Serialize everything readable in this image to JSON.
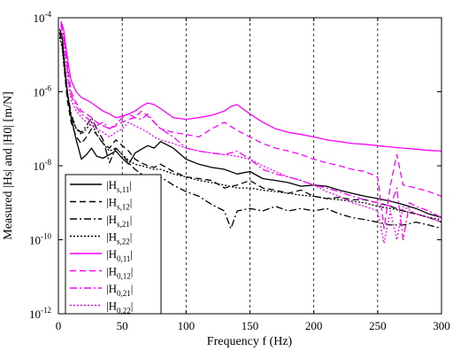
{
  "chart_data": {
    "type": "line",
    "xlabel": "Frequency f (Hz)",
    "ylabel": "Measured |Hs| and |H0| [m/N]",
    "xlim": [
      0,
      300
    ],
    "ylim": [
      1e-12,
      0.0001
    ],
    "yscale": "log",
    "grid": "vertical-dashed",
    "legend_position": "bottom-left",
    "x_ticks": [
      {
        "value": 0,
        "label": "0"
      },
      {
        "value": 50,
        "label": "50"
      },
      {
        "value": 100,
        "label": "100"
      },
      {
        "value": 150,
        "label": "150"
      },
      {
        "value": 200,
        "label": "200"
      },
      {
        "value": 250,
        "label": "250"
      },
      {
        "value": 300,
        "label": "300"
      }
    ],
    "y_ticks": [
      {
        "value": 0.0001,
        "base": "10",
        "exp": "-4"
      },
      {
        "value": 1e-06,
        "base": "10",
        "exp": "-6"
      },
      {
        "value": 1e-08,
        "base": "10",
        "exp": "-8"
      },
      {
        "value": 1e-10,
        "base": "10",
        "exp": "-10"
      },
      {
        "value": 1e-12,
        "base": "10",
        "exp": "-12"
      }
    ],
    "series": [
      {
        "name": "|Hs,11|",
        "legend_main": "|H",
        "legend_sub": "s,11",
        "legend_end": "|",
        "color": "#000000",
        "dash": "",
        "x": [
          1,
          3,
          5,
          7,
          10,
          14,
          18,
          22,
          26,
          30,
          35,
          40,
          45,
          50,
          55,
          60,
          65,
          70,
          75,
          80,
          90,
          100,
          110,
          120,
          130,
          140,
          150,
          160,
          170,
          180,
          190,
          200,
          210,
          220,
          230,
          240,
          250,
          260,
          270,
          280,
          290,
          300
        ],
        "y": [
          5e-05,
          3e-05,
          5e-06,
          1e-06,
          2e-07,
          5e-08,
          1.5e-08,
          2e-08,
          3e-08,
          1.8e-08,
          1.6e-08,
          2e-08,
          2.5e-08,
          1.6e-08,
          1.1e-08,
          2.2e-08,
          2.8e-08,
          3.5e-08,
          3e-08,
          4.5e-08,
          3e-08,
          1.5e-08,
          1.1e-08,
          9e-09,
          8e-09,
          6e-09,
          7e-09,
          4.5e-09,
          4e-09,
          3.5e-09,
          2.8e-09,
          3e-09,
          2.8e-09,
          2.2e-09,
          1.8e-09,
          1.5e-09,
          1.3e-09,
          1.1e-09,
          9e-10,
          7e-10,
          5e-10,
          4e-10
        ]
      },
      {
        "name": "|Hs,12|",
        "legend_main": "|H",
        "legend_sub": "s,12",
        "legend_end": "|",
        "color": "#000000",
        "dash": "7,4",
        "x": [
          1,
          3,
          5,
          7,
          10,
          14,
          18,
          22,
          26,
          30,
          35,
          40,
          45,
          50,
          55,
          60,
          65,
          70,
          75,
          80,
          90,
          100,
          110,
          120,
          130,
          140,
          150,
          160,
          170,
          180,
          190,
          200,
          210,
          220,
          230,
          240,
          250,
          260,
          270,
          280,
          290,
          300
        ],
        "y": [
          4e-05,
          2e-05,
          3e-06,
          6e-07,
          1.5e-07,
          6e-08,
          4e-08,
          6e-08,
          1e-07,
          7e-08,
          4e-08,
          3e-08,
          5e-08,
          3.5e-08,
          2.5e-08,
          1.5e-08,
          1.2e-08,
          1e-08,
          9e-09,
          1.1e-08,
          7e-09,
          5e-09,
          4.5e-09,
          4e-09,
          2.5e-09,
          3e-09,
          4e-09,
          2.5e-09,
          2.2e-09,
          1.8e-09,
          2.2e-09,
          1.5e-09,
          1.3e-09,
          1.4e-09,
          1.2e-09,
          1.2e-09,
          1e-09,
          8e-10,
          6e-10,
          5e-10,
          4e-10,
          3e-10
        ]
      },
      {
        "name": "|Hs,21|",
        "legend_main": "|H",
        "legend_sub": "s,21",
        "legend_end": "|",
        "color": "#000000",
        "dash": "8,3,2,3",
        "x": [
          1,
          3,
          5,
          7,
          10,
          14,
          18,
          22,
          26,
          30,
          35,
          40,
          45,
          50,
          55,
          60,
          65,
          70,
          75,
          80,
          90,
          100,
          110,
          120,
          130,
          135,
          140,
          150,
          160,
          170,
          180,
          190,
          200,
          210,
          220,
          230,
          240,
          250,
          260,
          270,
          280,
          290,
          300
        ],
        "y": [
          4e-05,
          2e-05,
          4e-06,
          1e-06,
          2.5e-07,
          1e-07,
          8e-08,
          1.2e-07,
          2e-07,
          1e-07,
          5e-08,
          1.2e-08,
          3e-08,
          2e-08,
          1.2e-08,
          8e-09,
          6e-09,
          4e-09,
          4e-09,
          5e-09,
          3e-09,
          2e-09,
          1.5e-09,
          9e-10,
          6e-10,
          2e-10,
          6e-10,
          7e-10,
          6e-10,
          8e-10,
          6e-10,
          7e-10,
          6e-10,
          7e-10,
          5e-10,
          4e-10,
          3.5e-10,
          3e-10,
          2.5e-10,
          2.5e-10,
          3e-10,
          2.5e-10,
          2e-10
        ]
      },
      {
        "name": "|Hs,22|",
        "legend_main": "|H",
        "legend_sub": "s,22",
        "legend_end": "|",
        "color": "#000000",
        "dash": "2,2",
        "x": [
          1,
          3,
          5,
          7,
          10,
          14,
          18,
          22,
          26,
          30,
          35,
          40,
          45,
          50,
          55,
          60,
          65,
          70,
          75,
          80,
          90,
          100,
          110,
          120,
          130,
          140,
          150,
          160,
          170,
          180,
          190,
          200,
          210,
          220,
          230,
          240,
          250,
          260,
          270,
          280,
          290,
          300
        ],
        "y": [
          3e-05,
          1.5e-05,
          3e-06,
          8e-07,
          2e-07,
          1e-07,
          7e-08,
          1e-07,
          1.5e-07,
          7e-08,
          4e-08,
          2.5e-08,
          3e-08,
          2e-08,
          1.4e-08,
          1.1e-08,
          1e-08,
          9e-09,
          8e-09,
          8e-09,
          6e-09,
          5e-09,
          4e-09,
          3.5e-09,
          3e-09,
          2.5e-09,
          2.5e-09,
          2.2e-09,
          2e-09,
          1.8e-09,
          1.6e-09,
          1.5e-09,
          1.3e-09,
          1.2e-09,
          1.1e-09,
          1e-09,
          8e-10,
          7e-10,
          6e-10,
          5e-10,
          4e-10,
          3.5e-10
        ]
      },
      {
        "name": "|H0,11|",
        "legend_main": "|H",
        "legend_sub": "0,11",
        "legend_end": "|",
        "color": "#ff00ff",
        "dash": "",
        "x": [
          2,
          4,
          6,
          8,
          10,
          14,
          18,
          22,
          26,
          30,
          35,
          40,
          45,
          50,
          55,
          60,
          65,
          70,
          75,
          80,
          90,
          100,
          110,
          120,
          130,
          135,
          140,
          150,
          160,
          170,
          180,
          190,
          200,
          210,
          220,
          230,
          240,
          250,
          260,
          270,
          280,
          290,
          300
        ],
        "y": [
          8e-05,
          5e-05,
          1.5e-05,
          5e-06,
          2e-06,
          1e-06,
          7e-07,
          6e-07,
          5e-07,
          4e-07,
          3e-07,
          2.5e-07,
          2e-07,
          2.2e-07,
          2.5e-07,
          3e-07,
          4e-07,
          5e-07,
          4.5e-07,
          3.5e-07,
          2e-07,
          1.8e-07,
          2e-07,
          2.3e-07,
          3e-07,
          4e-07,
          4.5e-07,
          2.5e-07,
          1.5e-07,
          1e-07,
          8e-08,
          7e-08,
          6e-08,
          5e-08,
          4.5e-08,
          4e-08,
          3.8e-08,
          3.5e-08,
          3.2e-08,
          3e-08,
          2.8e-08,
          2.6e-08,
          2.5e-08
        ]
      },
      {
        "name": "|H0,12|",
        "legend_main": "|H",
        "legend_sub": "0,12",
        "legend_end": "|",
        "color": "#ff00ff",
        "dash": "7,4",
        "x": [
          2,
          4,
          6,
          8,
          10,
          14,
          18,
          22,
          26,
          30,
          35,
          40,
          45,
          50,
          55,
          60,
          65,
          70,
          75,
          80,
          90,
          100,
          110,
          120,
          130,
          140,
          150,
          160,
          170,
          180,
          190,
          200,
          210,
          220,
          230,
          240,
          250,
          255,
          260,
          265,
          270,
          280,
          290,
          300
        ],
        "y": [
          7e-05,
          4e-05,
          1e-05,
          3e-06,
          1e-06,
          5e-07,
          3e-07,
          2.5e-07,
          2e-07,
          1.5e-07,
          1.2e-07,
          1e-07,
          1.2e-07,
          1.5e-07,
          1.8e-07,
          2e-07,
          3e-07,
          2.2e-07,
          1.5e-07,
          1e-07,
          8e-08,
          7e-08,
          6e-08,
          1e-07,
          1.5e-07,
          9e-08,
          6e-08,
          4e-08,
          3e-08,
          2.5e-08,
          2e-08,
          1.5e-08,
          1.2e-08,
          1e-08,
          8e-09,
          7e-09,
          5e-09,
          2e-10,
          3e-09,
          2e-08,
          3e-09,
          2.5e-09,
          2e-09,
          1.5e-09
        ]
      },
      {
        "name": "|H0,21|",
        "legend_main": "|H",
        "legend_sub": "0,21",
        "legend_end": "|",
        "color": "#ff00ff",
        "dash": "8,3,2,3",
        "x": [
          2,
          4,
          6,
          8,
          10,
          14,
          18,
          22,
          26,
          30,
          35,
          40,
          45,
          50,
          55,
          60,
          65,
          70,
          75,
          80,
          90,
          100,
          110,
          120,
          130,
          140,
          150,
          160,
          170,
          180,
          190,
          200,
          210,
          220,
          230,
          240,
          250,
          260,
          265,
          270,
          275,
          280,
          290,
          300
        ],
        "y": [
          7e-05,
          3e-05,
          8e-06,
          2e-06,
          8e-07,
          4e-07,
          2.5e-07,
          2e-07,
          1.5e-07,
          1.2e-07,
          1.5e-07,
          1e-07,
          1.3e-07,
          2e-07,
          2.5e-07,
          2e-07,
          1.8e-07,
          2.5e-07,
          1.5e-07,
          1e-07,
          6e-08,
          3e-08,
          2.5e-08,
          2.2e-08,
          2e-08,
          2.5e-08,
          1.5e-08,
          8e-09,
          6e-09,
          5e-09,
          4e-09,
          3e-09,
          2.5e-09,
          2e-09,
          1.5e-09,
          1.2e-09,
          1e-09,
          8e-10,
          2.5e-09,
          1e-10,
          1e-09,
          8e-10,
          6e-10,
          4e-10
        ]
      },
      {
        "name": "|H0,22|",
        "legend_main": "|H",
        "legend_sub": "0,22",
        "legend_end": "|",
        "color": "#ff00ff",
        "dash": "2,2",
        "x": [
          2,
          4,
          6,
          8,
          10,
          14,
          18,
          22,
          26,
          30,
          35,
          40,
          45,
          50,
          55,
          60,
          65,
          70,
          75,
          80,
          90,
          100,
          110,
          120,
          130,
          140,
          150,
          160,
          170,
          180,
          190,
          200,
          210,
          220,
          230,
          240,
          250,
          255,
          260,
          265,
          270,
          280,
          290,
          300
        ],
        "y": [
          6e-05,
          2.5e-05,
          6e-06,
          1.5e-06,
          6e-07,
          3e-07,
          2e-07,
          1.5e-07,
          1.2e-07,
          1e-07,
          8e-08,
          6e-08,
          8e-08,
          1e-07,
          1.5e-07,
          1.2e-07,
          1e-07,
          8e-08,
          6e-08,
          5e-08,
          4e-08,
          3e-08,
          2.5e-08,
          2.2e-08,
          2e-08,
          1.8e-08,
          1.5e-08,
          1e-08,
          7e-09,
          5e-09,
          4e-09,
          3e-09,
          2e-09,
          1.5e-09,
          1e-09,
          8e-10,
          6e-10,
          8e-11,
          6e-10,
          1e-10,
          8e-10,
          5e-10,
          4e-10,
          3e-10
        ]
      }
    ]
  }
}
